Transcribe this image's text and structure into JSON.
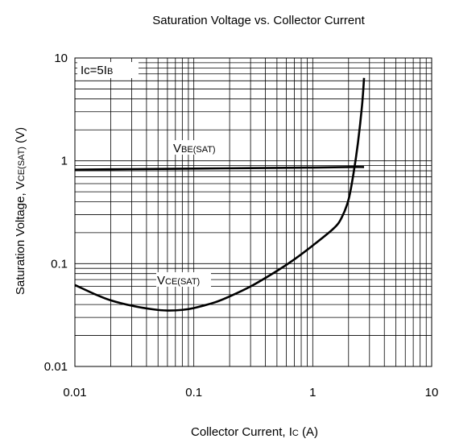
{
  "chart_data": {
    "type": "line",
    "title": "Saturation Voltage vs. Collector Current",
    "xlabel": "Collector Current, Ic (A)",
    "ylabel": "Saturation Voltage, VCE(SAT) (V)",
    "xlabel_parts": {
      "main": "Collector Current, I",
      "sub": "C",
      "tail": " (A)"
    },
    "ylabel_parts": {
      "main": "Saturation Voltage, V",
      "sub": "CE(SAT)",
      "tail": "  (V)"
    },
    "x_scale": "log",
    "y_scale": "log",
    "xlim": [
      0.01,
      10
    ],
    "ylim": [
      0.01,
      10
    ],
    "x_ticks": [
      "0.01",
      "0.1",
      "1",
      "10"
    ],
    "y_ticks": [
      "0.01",
      "0.1",
      "1",
      "10"
    ],
    "grid": true,
    "condition_label": {
      "main": "Ic=5I",
      "sub": "B"
    },
    "series": [
      {
        "name": "VBE(SAT)",
        "label_parts": {
          "main": "V",
          "sub": "BE(SAT)"
        },
        "x": [
          0.01,
          0.03,
          0.1,
          0.3,
          1,
          2,
          2.7
        ],
        "y": [
          0.82,
          0.83,
          0.84,
          0.85,
          0.86,
          0.87,
          0.87
        ]
      },
      {
        "name": "VCE(SAT)",
        "label_parts": {
          "main": "V",
          "sub": "CE(SAT)"
        },
        "x": [
          0.01,
          0.015,
          0.02,
          0.03,
          0.045,
          0.06,
          0.08,
          0.1,
          0.15,
          0.2,
          0.3,
          0.5,
          0.7,
          1.0,
          1.5,
          1.75,
          2.0,
          2.2,
          2.4,
          2.6,
          2.7
        ],
        "y": [
          0.062,
          0.05,
          0.044,
          0.039,
          0.036,
          0.035,
          0.0355,
          0.037,
          0.042,
          0.048,
          0.06,
          0.085,
          0.11,
          0.15,
          0.22,
          0.28,
          0.42,
          0.75,
          1.5,
          3.5,
          6.4
        ]
      }
    ]
  }
}
